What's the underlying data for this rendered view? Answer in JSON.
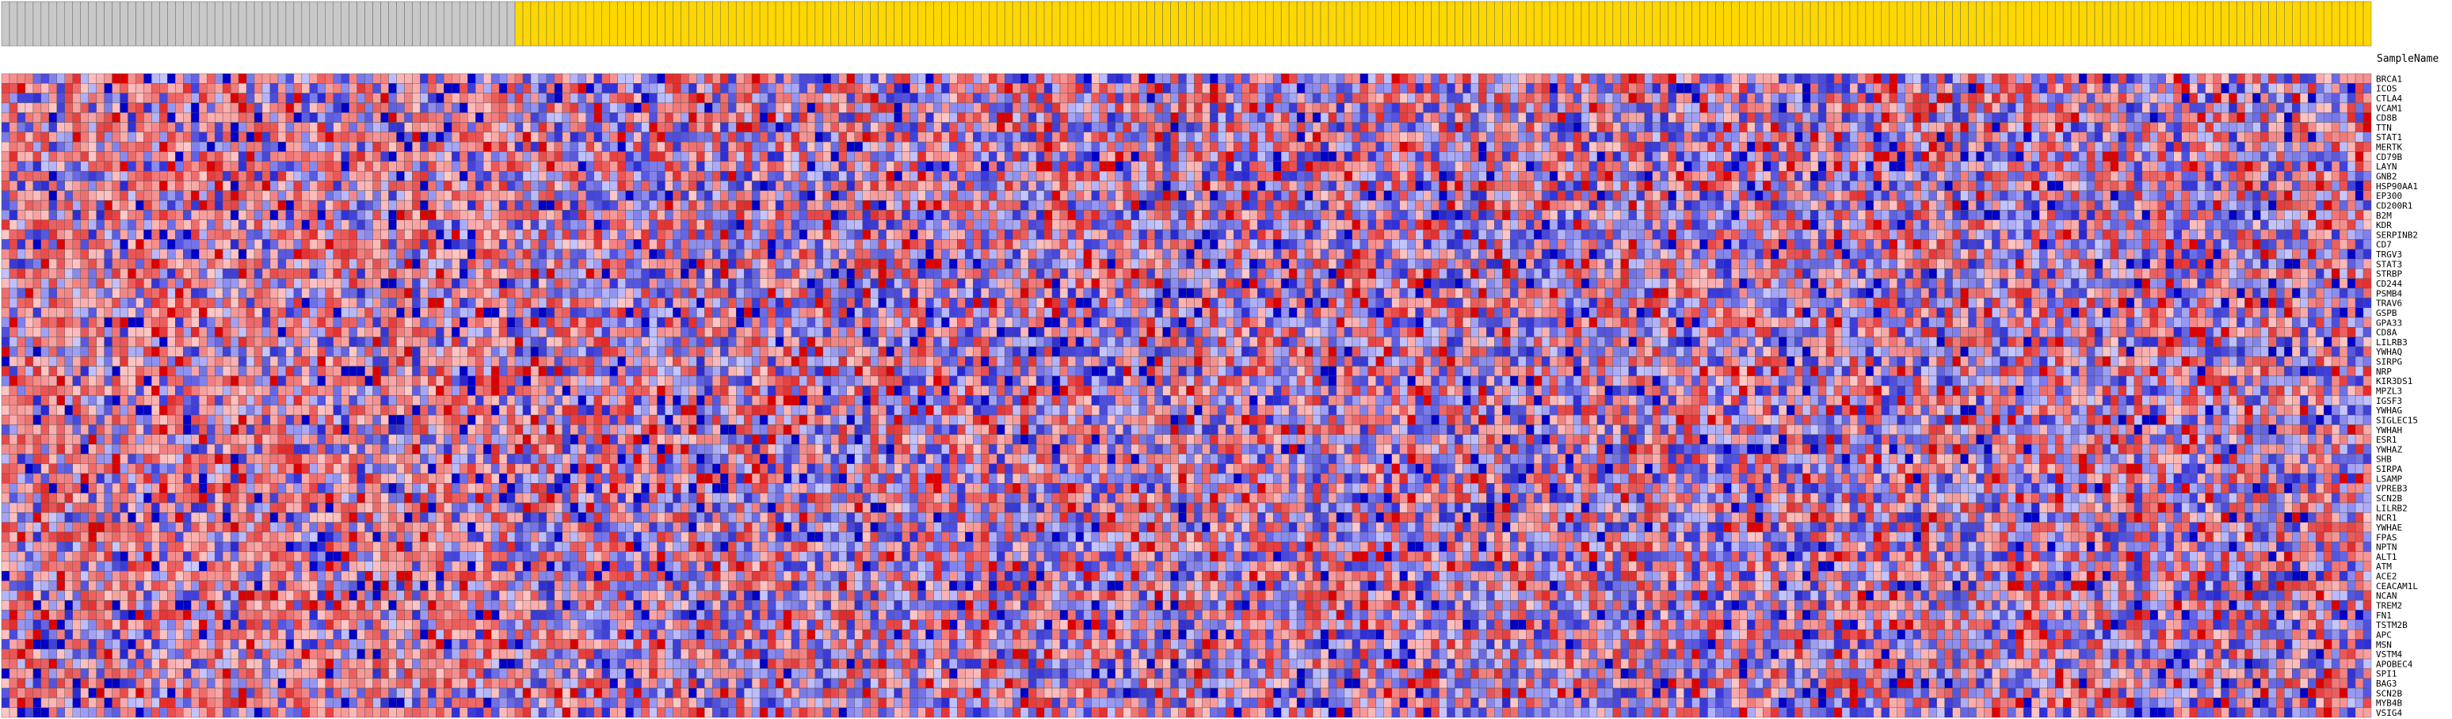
{
  "chart_data": {
    "type": "heatmap",
    "title": "",
    "xlabel": "",
    "ylabel": "",
    "header_label": "SampleName",
    "group_colors": {
      "group_a": "#c8c8c8",
      "group_b": "#ffd700"
    },
    "color_scale": {
      "low": "#0000c8",
      "mid": "#c8c8ff",
      "mid_high": "#ffc8c8",
      "high": "#dc0000"
    },
    "column_groups": [
      {
        "group": "group_a",
        "count": 65
      },
      {
        "group": "group_b",
        "count": 235
      }
    ],
    "rows": [
      "BRCA1",
      "ICOS",
      "CTLA4",
      "VCAM1",
      "CD8B",
      "TTN",
      "STAT1",
      "MERTK",
      "CD79B",
      "LAYN",
      "GNB2",
      "HSP90AA1",
      "EP300",
      "CD200R1",
      "B2M",
      "KDR",
      "SERPINB2",
      "CD7",
      "TRGV3",
      "STAT3",
      "STRBP",
      "CD244",
      "PSMB4",
      "TRAV6",
      "GSPB",
      "GPA33",
      "CD8A",
      "LILRB3",
      "YWHAQ",
      "SIRPG",
      "NRP",
      "KIR3DS1",
      "MPZL3",
      "IGSF3",
      "YWHAG",
      "SIGLEC15",
      "YWHAH",
      "ESR1",
      "YWHAZ",
      "SHB",
      "SIRPA",
      "LSAMP",
      "VPREB3",
      "SCN2B",
      "LILRB2",
      "NCR1",
      "YWHAE",
      "FPAS",
      "NPTN",
      "ALT1",
      "ATM",
      "ACE2",
      "CEACAM1L",
      "NCAN",
      "TREM2",
      "FN1",
      "TSTM2B",
      "APC",
      "MSN",
      "VSTM4",
      "APOBEC4",
      "SPI1",
      "BAG3",
      "SCN2B",
      "MYB4B",
      "VSIG4"
    ],
    "columns_shown": 300,
    "value_range": [
      -2,
      2
    ],
    "grid": true,
    "legend": "none"
  }
}
